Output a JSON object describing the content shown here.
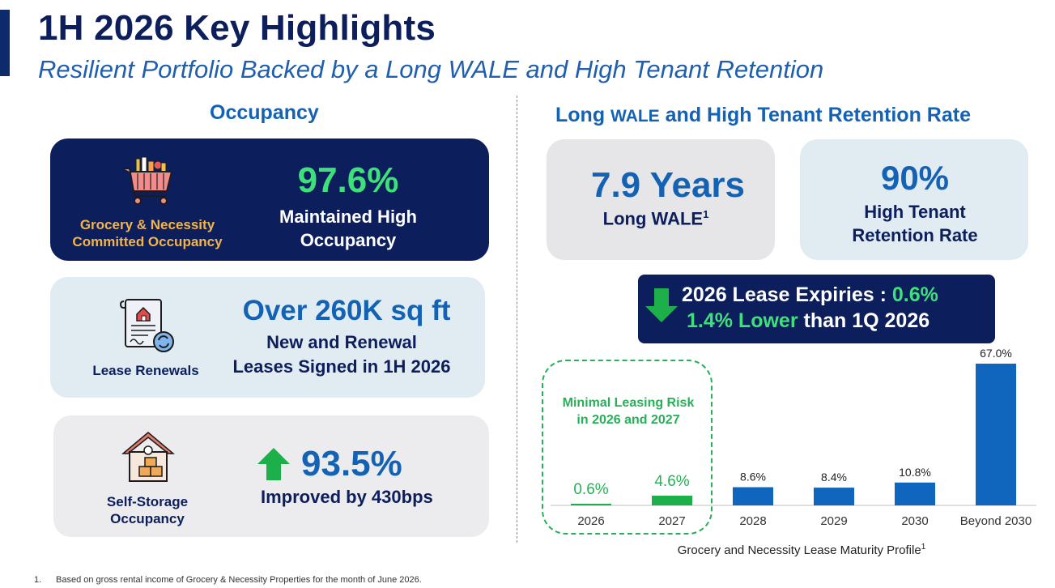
{
  "header": {
    "title": "1H 2026 Key Highlights",
    "subtitle": "Resilient Portfolio Backed by a Long WALE and High Tenant Retention"
  },
  "occupancy": {
    "section_title": "Occupancy",
    "grocery": {
      "label_line1": "Grocery & Necessity",
      "label_line2": "Committed Occupancy",
      "value": "97.6%",
      "desc_line1": "Maintained High",
      "desc_line2": "Occupancy",
      "icon": "shopping-cart-icon"
    },
    "lease": {
      "label": "Lease Renewals",
      "value": "Over 260K sq ft",
      "desc_line1": "New and Renewal",
      "desc_line2": "Leases Signed in 1H 2026",
      "icon": "lease-document-icon"
    },
    "storage": {
      "label_line1": "Self-Storage",
      "label_line2": "Occupancy",
      "value": "93.5%",
      "desc": "Improved by 430bps",
      "icon": "storage-house-icon"
    }
  },
  "wale": {
    "section_title_part1": "Long ",
    "section_title_part2": "WALE",
    "section_title_part3": " and High Tenant Retention Rate",
    "wale_value": "7.9 Years",
    "wale_label": "Long WALE",
    "wale_footnote_marker": "1",
    "retention_value": "90%",
    "retention_label_line1": "High Tenant",
    "retention_label_line2": "Retention Rate",
    "expiry_line1_text": "2026 Lease Expiries : ",
    "expiry_line1_value": "0.6%",
    "expiry_line2_green": "1.4% Lower",
    "expiry_line2_rest": " than 1Q 2026",
    "risk_label_line1": "Minimal Leasing Risk",
    "risk_label_line2": "in 2026 and 2027"
  },
  "chart_data": {
    "type": "bar",
    "categories": [
      "2026",
      "2027",
      "2028",
      "2029",
      "2030",
      "Beyond 2030"
    ],
    "values": [
      0.6,
      4.6,
      8.6,
      8.4,
      10.8,
      67.0
    ],
    "data_labels": [
      "0.6%",
      "4.6%",
      "8.6%",
      "8.4%",
      "10.8%",
      "67.0%"
    ],
    "colors": [
      "#1db04a",
      "#1db04a",
      "#1065bd",
      "#1065bd",
      "#1065bd",
      "#1065bd"
    ],
    "ylim": [
      0,
      67.0
    ],
    "caption": "Grocery and Necessity Lease Maturity Profile",
    "caption_footnote_marker": "1"
  },
  "footnote": {
    "number": "1.",
    "text": "Based on gross rental income of Grocery & Necessity Properties for the month of June 2026."
  },
  "colors": {
    "navy": "#0d1e5c",
    "blue": "#1462b4",
    "green": "#3ee07a",
    "gold": "#f2b54a"
  }
}
